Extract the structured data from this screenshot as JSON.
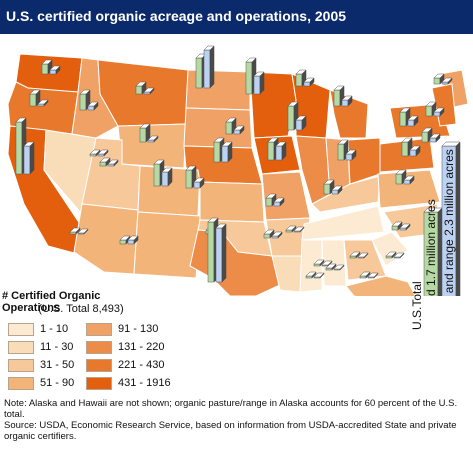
{
  "title": "U.S. certified organic acreage and operations, 2005",
  "legend": {
    "title": "# Certified Organic Operations",
    "subtitle": "(U.S. Total 8,493)",
    "bins": [
      {
        "label": "1 - 10",
        "color": "#fcebd2"
      },
      {
        "label": "11 - 30",
        "color": "#f9dcb8"
      },
      {
        "label": "31 - 50",
        "color": "#f6c89a"
      },
      {
        "label": "51 - 90",
        "color": "#f3b47a"
      },
      {
        "label": "91 - 130",
        "color": "#f0a166"
      },
      {
        "label": "131 - 220",
        "color": "#ec8c48"
      },
      {
        "label": "221 - 430",
        "color": "#e8782c"
      },
      {
        "label": "431 - 1916",
        "color": "#e35f0e"
      }
    ]
  },
  "acreage": {
    "total_label": "U.S.Total",
    "cropland_label": "Cropland 1.7 million acres",
    "pasture_label": "Pasture  and range 2.3 million acres",
    "cropland_color": "#b6d9a3",
    "pasture_color": "#bcd2f2"
  },
  "footnote": {
    "line1": "Note: Alaska and Hawaii are not shown; organic pasture/range in Alaska accounts for 60 percent of the U.S. total.",
    "line2": "Source: USDA, Economic Research Service, based on information from USDA-accredited State and private organic certifiers."
  }
}
